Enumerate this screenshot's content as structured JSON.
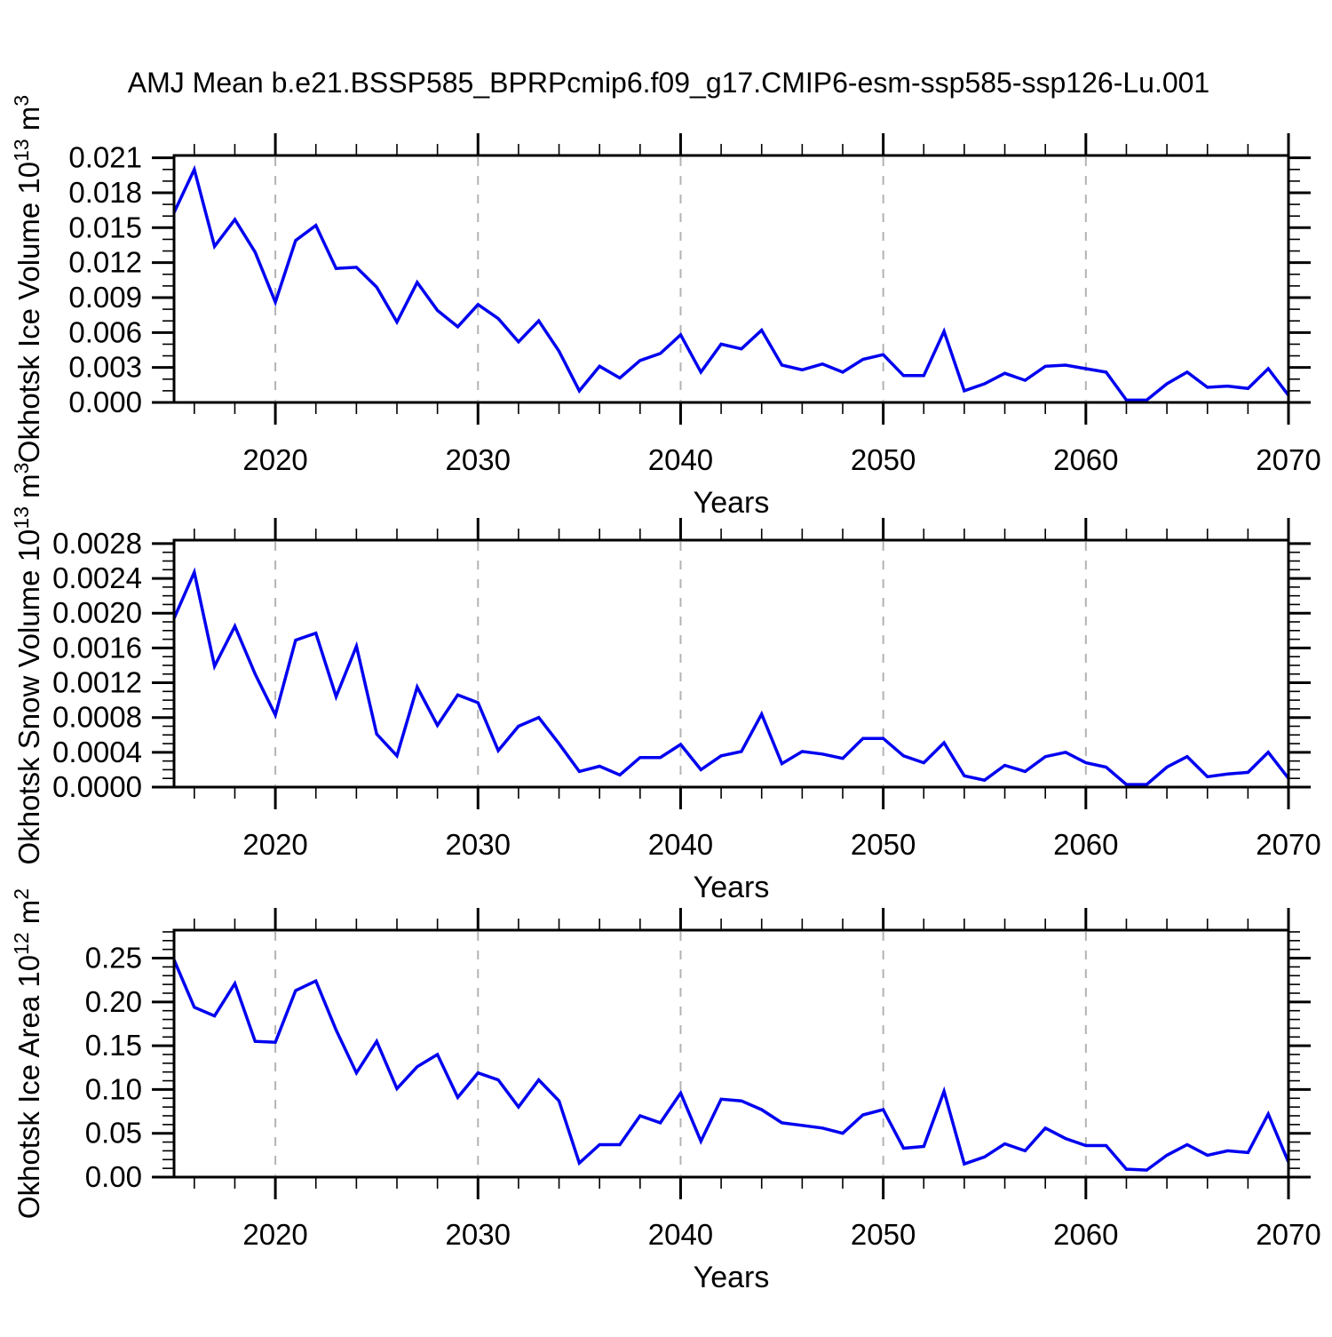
{
  "title": "AMJ Mean b.e21.BSSP585_BPRPcmip6.f09_g17.CMIP6-esm-ssp585-ssp126-Lu.001",
  "figure": {
    "line_color": "#0000f0",
    "grid_color": "#b3b3b3",
    "axis_color": "#000000",
    "background": "#ffffff"
  },
  "x_axis": {
    "label": "Years",
    "range": [
      2015,
      2070
    ],
    "major_ticks": [
      2020,
      2030,
      2040,
      2050,
      2060,
      2070
    ],
    "minor_step_years": 2,
    "gridlines": [
      2020,
      2030,
      2040,
      2050,
      2060
    ]
  },
  "years": [
    2015,
    2016,
    2017,
    2018,
    2019,
    2020,
    2021,
    2022,
    2023,
    2024,
    2025,
    2026,
    2027,
    2028,
    2029,
    2030,
    2031,
    2032,
    2033,
    2034,
    2035,
    2036,
    2037,
    2038,
    2039,
    2040,
    2041,
    2042,
    2043,
    2044,
    2045,
    2046,
    2047,
    2048,
    2049,
    2050,
    2051,
    2052,
    2053,
    2054,
    2055,
    2056,
    2057,
    2058,
    2059,
    2060,
    2061,
    2062,
    2063,
    2064,
    2065,
    2066,
    2067,
    2068,
    2069,
    2070
  ],
  "chart_data": [
    {
      "type": "line",
      "id": "ice-volume",
      "title": "AMJ Mean b.e21.BSSP585_BPRPcmip6.f09_g17.CMIP6-esm-ssp585-ssp126-Lu.001",
      "xlabel": "Years",
      "ylabel": "Okhotsk Ice Volume 10^13 m^3",
      "ylabel_parts": [
        {
          "t": "Okhotsk Ice Volume 10"
        },
        {
          "t": "13",
          "sup": true
        },
        {
          "t": " m"
        },
        {
          "t": "3",
          "sup": true
        }
      ],
      "ylim": [
        0,
        0.0212
      ],
      "ytick_step": 0.003,
      "yminor_step": 0.001,
      "yticks": [
        "0.000",
        "0.003",
        "0.006",
        "0.009",
        "0.012",
        "0.015",
        "0.018",
        "0.021"
      ],
      "grid": "dashed-vertical-decades",
      "legend": "none",
      "values": [
        0.0163,
        0.02,
        0.0134,
        0.0157,
        0.0129,
        0.0086,
        0.0139,
        0.0152,
        0.0115,
        0.0116,
        0.0099,
        0.0069,
        0.0103,
        0.0079,
        0.0065,
        0.0084,
        0.0072,
        0.0052,
        0.007,
        0.0044,
        0.001,
        0.0031,
        0.0021,
        0.0036,
        0.0042,
        0.0058,
        0.0026,
        0.005,
        0.0046,
        0.0062,
        0.0032,
        0.0028,
        0.0033,
        0.0026,
        0.0037,
        0.0041,
        0.0023,
        0.0023,
        0.0061,
        0.001,
        0.0016,
        0.0025,
        0.0019,
        0.0031,
        0.0032,
        0.0029,
        0.0026,
        0.0002,
        0.0002,
        0.0016,
        0.0026,
        0.0013,
        0.0014,
        0.0012,
        0.0029,
        0.0006
      ]
    },
    {
      "type": "line",
      "id": "snow-volume",
      "title": "AMJ Mean b.e21.BSSP585_BPRPcmip6.f09_g17.CMIP6-esm-ssp585-ssp126-Lu.001",
      "xlabel": "Years",
      "ylabel": "Okhotsk Snow Volume 10^13 m^3",
      "ylabel_parts": [
        {
          "t": "Okhotsk Snow Volume 10"
        },
        {
          "t": "13",
          "sup": true
        },
        {
          "t": " m"
        },
        {
          "t": "3",
          "sup": true
        }
      ],
      "ylim": [
        0,
        0.00284
      ],
      "ytick_step": 0.0004,
      "yminor_step": 0.0001,
      "yticks": [
        "0.0000",
        "0.0004",
        "0.0008",
        "0.0012",
        "0.0016",
        "0.0020",
        "0.0024",
        "0.0028"
      ],
      "grid": "dashed-vertical-decades",
      "legend": "none",
      "values": [
        0.00194,
        0.00247,
        0.00139,
        0.00185,
        0.0013,
        0.00083,
        0.00169,
        0.00177,
        0.00104,
        0.00162,
        0.00061,
        0.00036,
        0.00115,
        0.00071,
        0.00106,
        0.00097,
        0.00042,
        0.0007,
        0.0008,
        0.0005,
        0.00018,
        0.00024,
        0.00014,
        0.00034,
        0.00034,
        0.00049,
        0.0002,
        0.00036,
        0.00041,
        0.00084,
        0.00027,
        0.00041,
        0.00038,
        0.00033,
        0.00056,
        0.00056,
        0.00036,
        0.00028,
        0.00051,
        0.00013,
        8e-05,
        0.00025,
        0.00018,
        0.00035,
        0.0004,
        0.00028,
        0.00023,
        3e-05,
        3e-05,
        0.00023,
        0.00035,
        0.00012,
        0.00015,
        0.00017,
        0.0004,
        0.0001
      ]
    },
    {
      "type": "line",
      "id": "ice-area",
      "title": "AMJ Mean b.e21.BSSP585_BPRPcmip6.f09_g17.CMIP6-esm-ssp585-ssp126-Lu.001",
      "xlabel": "Years",
      "ylabel": "Okhotsk Ice Area 10^12 m^2",
      "ylabel_parts": [
        {
          "t": "Okhotsk Ice Area 10"
        },
        {
          "t": "12",
          "sup": true
        },
        {
          "t": " m"
        },
        {
          "t": "2",
          "sup": true
        }
      ],
      "ylim": [
        0,
        0.282
      ],
      "ytick_step": 0.05,
      "yminor_step": 0.01,
      "yticks": [
        "0.00",
        "0.05",
        "0.10",
        "0.15",
        "0.20",
        "0.25"
      ],
      "grid": "dashed-vertical-decades",
      "legend": "none",
      "values": [
        0.248,
        0.194,
        0.184,
        0.221,
        0.155,
        0.154,
        0.213,
        0.224,
        0.168,
        0.119,
        0.155,
        0.101,
        0.126,
        0.14,
        0.091,
        0.119,
        0.111,
        0.08,
        0.111,
        0.087,
        0.016,
        0.037,
        0.037,
        0.07,
        0.062,
        0.096,
        0.041,
        0.089,
        0.087,
        0.077,
        0.062,
        0.059,
        0.056,
        0.05,
        0.071,
        0.077,
        0.033,
        0.035,
        0.098,
        0.015,
        0.023,
        0.038,
        0.03,
        0.056,
        0.044,
        0.036,
        0.036,
        0.009,
        0.008,
        0.025,
        0.037,
        0.025,
        0.03,
        0.028,
        0.072,
        0.017
      ]
    }
  ]
}
